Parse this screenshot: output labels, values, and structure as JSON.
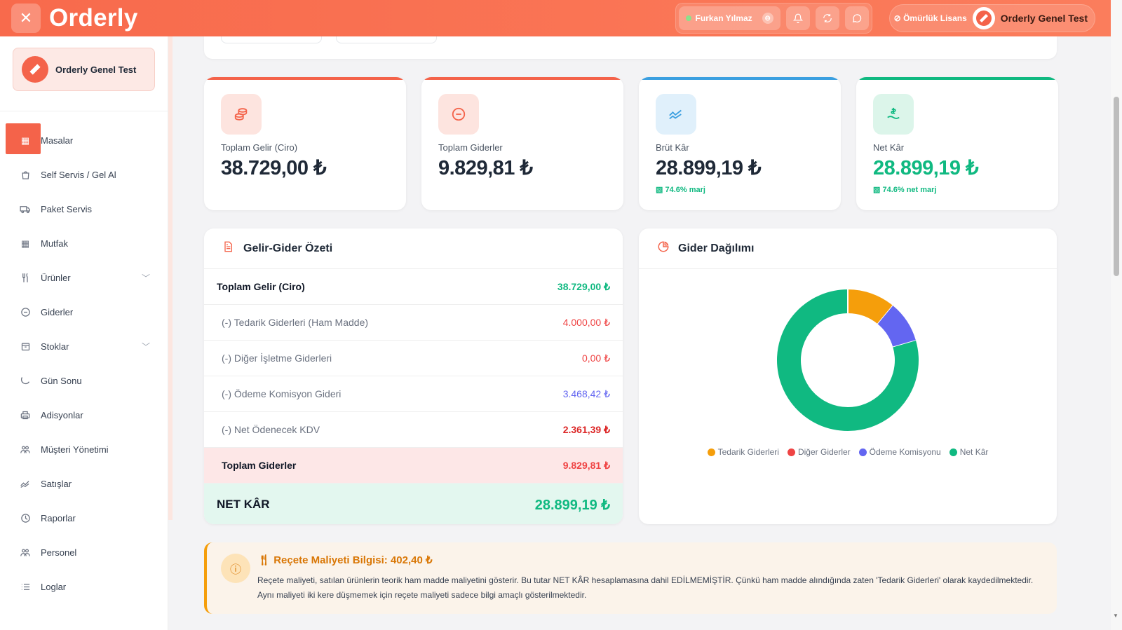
{
  "app": {
    "name": "Orderly"
  },
  "header": {
    "user_name": "Furkan Yılmaz",
    "license_label": "Ömürlük Lisans",
    "org_name": "Orderly Genel Test"
  },
  "sidebar": {
    "org_name": "Orderly Genel Test",
    "items": [
      {
        "label": "Masalar",
        "icon": "grid-icon"
      },
      {
        "label": "Self Servis / Gel Al",
        "icon": "bag-icon"
      },
      {
        "label": "Paket Servis",
        "icon": "truck-icon"
      },
      {
        "label": "Mutfak",
        "icon": "grid-icon"
      },
      {
        "label": "Ürünler",
        "icon": "utensils-icon"
      },
      {
        "label": "Giderler",
        "icon": "minus-circle-icon"
      },
      {
        "label": "Stoklar",
        "icon": "box-icon"
      },
      {
        "label": "Gün Sonu",
        "icon": "moon-icon"
      },
      {
        "label": "Adisyonlar",
        "icon": "printer-icon"
      },
      {
        "label": "Müşteri Yönetimi",
        "icon": "users-icon"
      },
      {
        "label": "Satışlar",
        "icon": "trend-icon"
      },
      {
        "label": "Raporlar",
        "icon": "clock-icon"
      },
      {
        "label": "Personel",
        "icon": "users-icon"
      },
      {
        "label": "Loglar",
        "icon": "list-icon"
      }
    ]
  },
  "stats": {
    "income": {
      "title": "Toplam Gelir (Ciro)",
      "value": "38.729,00 ₺",
      "color": "#f4634a"
    },
    "expenses": {
      "title": "Toplam Giderler",
      "value": "9.829,81 ₺",
      "color": "#f4634a"
    },
    "gross": {
      "title": "Brüt Kâr",
      "value": "28.899,19 ₺",
      "sub": "74.6% marj",
      "color": "#3b9fe0"
    },
    "net": {
      "title": "Net Kâr",
      "value": "28.899,19 ₺",
      "sub": "74.6% net marj",
      "color": "#10b981"
    }
  },
  "summary": {
    "title": "Gelir-Gider Özeti",
    "rows": [
      {
        "label": "Toplam Gelir (Ciro)",
        "value": "38.729,00 ₺"
      },
      {
        "label": "(-) Tedarik Giderleri (Ham Madde)",
        "value": "4.000,00 ₺"
      },
      {
        "label": "(-) Diğer İşletme Giderleri",
        "value": "0,00 ₺"
      },
      {
        "label": "(-) Ödeme Komisyon Gideri",
        "value": "3.468,42 ₺"
      },
      {
        "label": "(-) Net Ödenecek KDV",
        "value": "2.361,39 ₺"
      },
      {
        "label": "Toplam Giderler",
        "value": "9.829,81 ₺"
      },
      {
        "label": "NET KÂR",
        "value": "28.899,19 ₺"
      }
    ]
  },
  "distribution": {
    "title": "Gider Dağılımı",
    "legend": [
      "Tedarik Giderleri",
      "Diğer Giderler",
      "Ödeme Komisyonu",
      "Net Kâr"
    ]
  },
  "chart_data": {
    "type": "pie",
    "title": "Gider Dağılımı",
    "categories": [
      "Tedarik Giderleri",
      "Diğer Giderler",
      "Ödeme Komisyonu",
      "Net Kâr"
    ],
    "values": [
      4000.0,
      0.0,
      3468.42,
      28899.19
    ],
    "colors": [
      "#f59e0b",
      "#ef4444",
      "#6366f1",
      "#10b981"
    ],
    "donut": true,
    "legend_position": "bottom"
  },
  "recipe_info": {
    "title": "Reçete Maliyeti Bilgisi: 402,40 ₺",
    "text": "Reçete maliyeti, satılan ürünlerin teorik ham madde maliyetini gösterir. Bu tutar NET KÂR hesaplamasına dahil EDİLMEMİŞTİR. Çünkü ham madde alındığında zaten 'Tedarik Giderleri' olarak kaydedilmektedir. Aynı maliyeti iki kere düşmemek için reçete maliyeti sadece bilgi amaçlı gösterilmektedir."
  }
}
